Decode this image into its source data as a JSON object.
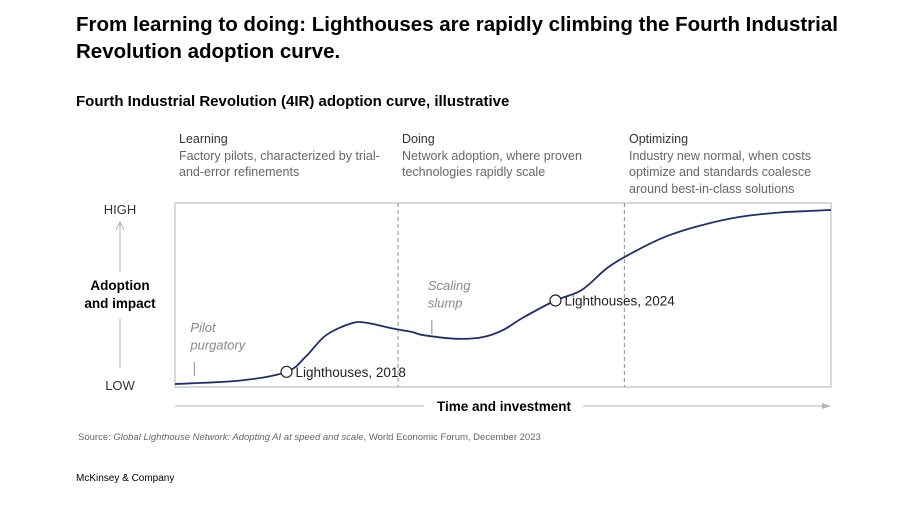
{
  "title": "From learning to doing: Lighthouses are rapidly climbing the Fourth Industrial Revolution adoption curve.",
  "subtitle": "Fourth Industrial Revolution (4IR) adoption curve, illustrative",
  "phases": [
    {
      "name": "Learning",
      "description": "Factory pilots, characterized by trial-and-error refinements"
    },
    {
      "name": "Doing",
      "description": "Network adoption, where proven technologies rapidly scale"
    },
    {
      "name": "Optimizing",
      "description": "Industry new normal, when costs optimize and standards coalesce around best-in-class solutions"
    }
  ],
  "chart_data": {
    "type": "line",
    "title": "Fourth Industrial Revolution (4IR) adoption curve, illustrative",
    "xlabel": "Time and investment",
    "ylabel": "Adoption and impact",
    "ylabel_lines": [
      "Adoption",
      "and impact"
    ],
    "y_high_label": "HIGH",
    "y_low_label": "LOW",
    "xlim": [
      0,
      100
    ],
    "ylim": [
      0,
      100
    ],
    "phase_boundaries": [
      34,
      68.5
    ],
    "curve": {
      "x": [
        0,
        10,
        17,
        20,
        23,
        27,
        29.5,
        33,
        36,
        38,
        43,
        47,
        50,
        53,
        58,
        62,
        66,
        70,
        75,
        80,
        86,
        92,
        97,
        100
      ],
      "y": [
        0,
        2,
        7,
        16,
        28,
        35,
        35,
        32,
        30,
        28,
        26,
        27,
        31,
        38,
        48,
        54,
        67,
        76,
        85,
        91,
        96,
        98.5,
        99.5,
        100
      ]
    },
    "markers": [
      {
        "label": "Lighthouses, 2018",
        "x": 17,
        "y": 7
      },
      {
        "label": "Lighthouses, 2024",
        "x": 58,
        "y": 48
      }
    ],
    "annotations": [
      {
        "lines": [
          "Pilot",
          "purgatory"
        ],
        "x": 2.8,
        "y": 15
      },
      {
        "lines": [
          "Scaling",
          "slump"
        ],
        "x": 39,
        "y": 39
      }
    ]
  },
  "source": {
    "prefix": "Source: ",
    "italic": "Global Lighthouse Network: Adopting AI at speed and scale",
    "suffix": ", World Economic Forum, December 2023"
  },
  "footer": "McKinsey & Company",
  "colors": {
    "curve": "#1f2e6e",
    "frame": "#b3b3b3",
    "divider": "#8c8c8c",
    "muted": "#888888"
  }
}
